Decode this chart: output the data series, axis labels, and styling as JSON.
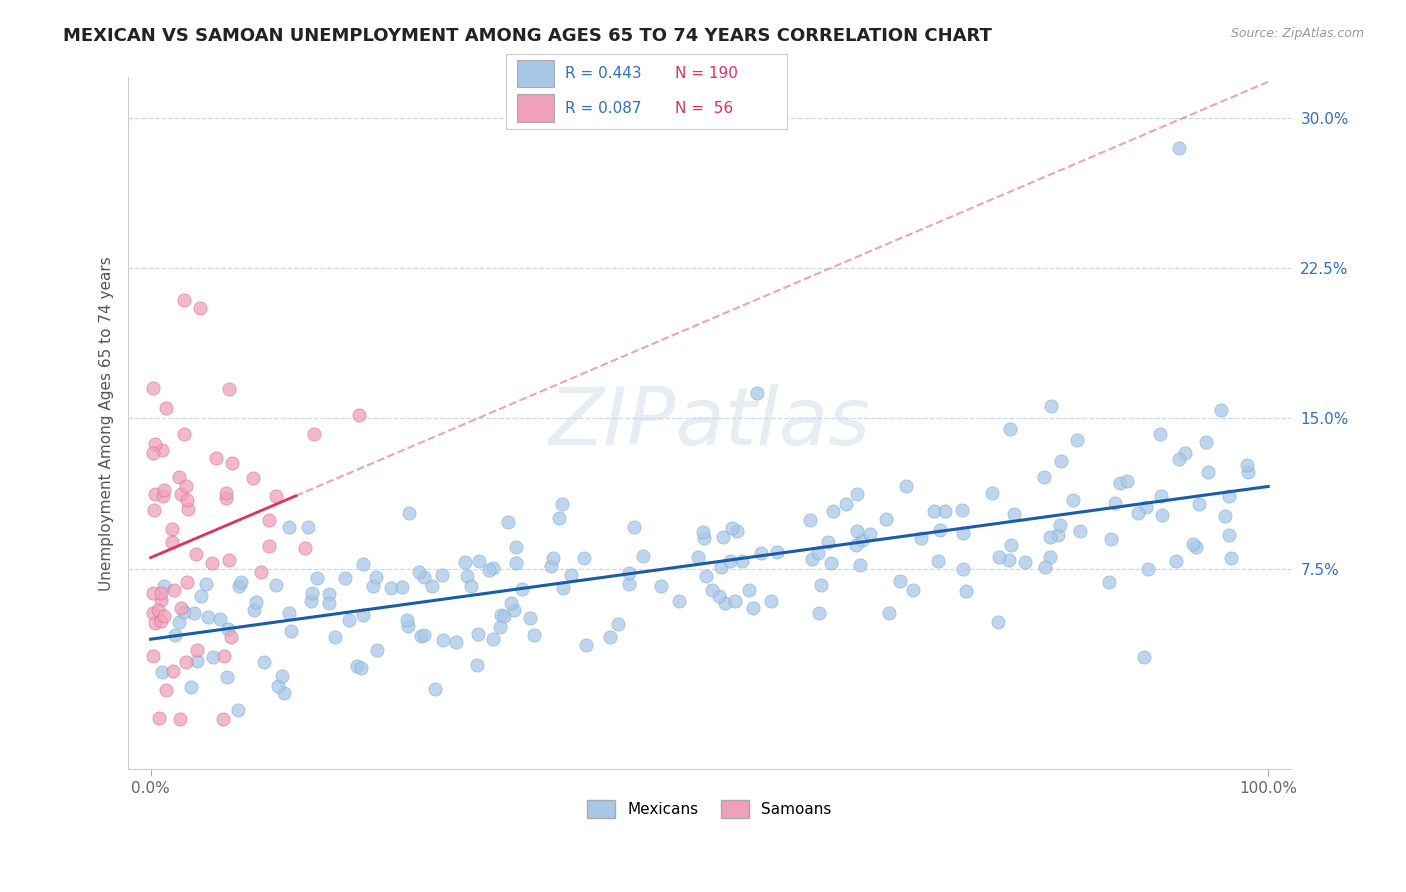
{
  "title": "MEXICAN VS SAMOAN UNEMPLOYMENT AMONG AGES 65 TO 74 YEARS CORRELATION CHART",
  "source": "Source: ZipAtlas.com",
  "ylabel": "Unemployment Among Ages 65 to 74 years",
  "xlim": [
    -0.02,
    1.02
  ],
  "ylim": [
    -0.025,
    0.32
  ],
  "xticks": [
    0.0,
    1.0
  ],
  "xtick_labels": [
    "0.0%",
    "100.0%"
  ],
  "yticks": [
    0.075,
    0.15,
    0.225,
    0.3
  ],
  "ytick_labels": [
    "7.5%",
    "15.0%",
    "22.5%",
    "30.0%"
  ],
  "mexican_R": 0.443,
  "mexican_N": 190,
  "samoan_R": 0.087,
  "samoan_N": 56,
  "mexican_color": "#a8c8e8",
  "samoan_color": "#f0a0b8",
  "mexican_line_color": "#1a5ca8",
  "samoan_line_color": "#e03060",
  "samoan_line_dashed_color": "#e08090",
  "watermark_text": "ZIPatlas",
  "background_color": "#ffffff",
  "grid_color": "#c8d8e8",
  "title_fontsize": 13,
  "label_fontsize": 11,
  "tick_fontsize": 11,
  "legend_R_color": "#3070c0",
  "legend_N_color": "#e03060"
}
